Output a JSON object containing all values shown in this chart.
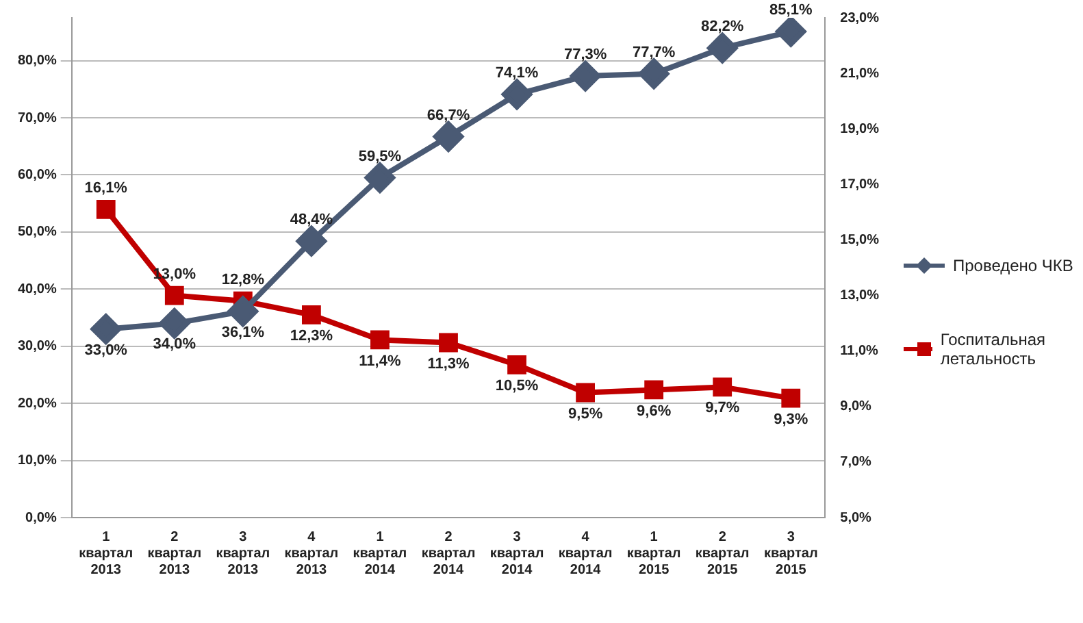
{
  "chart_data": {
    "type": "line",
    "categories": [
      "1 квартал 2013",
      "2 квартал 2013",
      "3 квартал 2013",
      "4 квартал 2013",
      "1 квартал 2014",
      "2 квартал 2014",
      "3 квартал 2014",
      "4 квартал 2014",
      "1 квартал 2015",
      "2 квартал 2015",
      "3 квартал 2015"
    ],
    "series": [
      {
        "name": "Проведено ЧКВ",
        "color": "#4a5a74",
        "marker": "diamond",
        "values": [
          33.0,
          34.0,
          36.1,
          48.4,
          59.5,
          66.7,
          74.1,
          77.3,
          77.7,
          82.2,
          85.1
        ],
        "value_labels": [
          "33,0%",
          "34,0%",
          "36,1%",
          "48,4%",
          "59,5%",
          "66,7%",
          "74,1%",
          "77,3%",
          "77,7%",
          "82,2%",
          "85,1%"
        ]
      },
      {
        "name": "Госпитальная летальность",
        "color": "#c00000",
        "marker": "square",
        "axis": "y2",
        "values": [
          16.1,
          13.0,
          12.8,
          12.3,
          11.4,
          11.3,
          10.5,
          9.5,
          9.6,
          9.7,
          9.3
        ],
        "value_labels": [
          "16,1%",
          "13,0%",
          "12,8%",
          "12,3%",
          "11,4%",
          "11,3%",
          "10,5%",
          "9,5%",
          "9,6%",
          "9,7%",
          "9,3%"
        ]
      }
    ],
    "ylim": [
      0,
      87.5
    ],
    "yticks": [
      {
        "value": 0,
        "label": "0,0%"
      },
      {
        "value": 10,
        "label": "10,0%"
      },
      {
        "value": 20,
        "label": "20,0%"
      },
      {
        "value": 30,
        "label": "30,0%"
      },
      {
        "value": 40,
        "label": "40,0%"
      },
      {
        "value": 50,
        "label": "50,0%"
      },
      {
        "value": 60,
        "label": "60,0%"
      },
      {
        "value": 70,
        "label": "70,0%"
      },
      {
        "value": 80,
        "label": "80,0%"
      }
    ],
    "y2lim": [
      5,
      23
    ],
    "y2ticks": [
      {
        "value": 5,
        "label": "5,0%"
      },
      {
        "value": 7,
        "label": "7,0%"
      },
      {
        "value": 9,
        "label": "9,0%"
      },
      {
        "value": 11,
        "label": "11,0%"
      },
      {
        "value": 13,
        "label": "13,0%"
      },
      {
        "value": 15,
        "label": "15,0%"
      },
      {
        "value": 17,
        "label": "17,0%"
      },
      {
        "value": 19,
        "label": "19,0%"
      },
      {
        "value": 21,
        "label": "21,0%"
      },
      {
        "value": 23,
        "label": "23,0%"
      }
    ],
    "grid": "y",
    "legend": "right"
  }
}
